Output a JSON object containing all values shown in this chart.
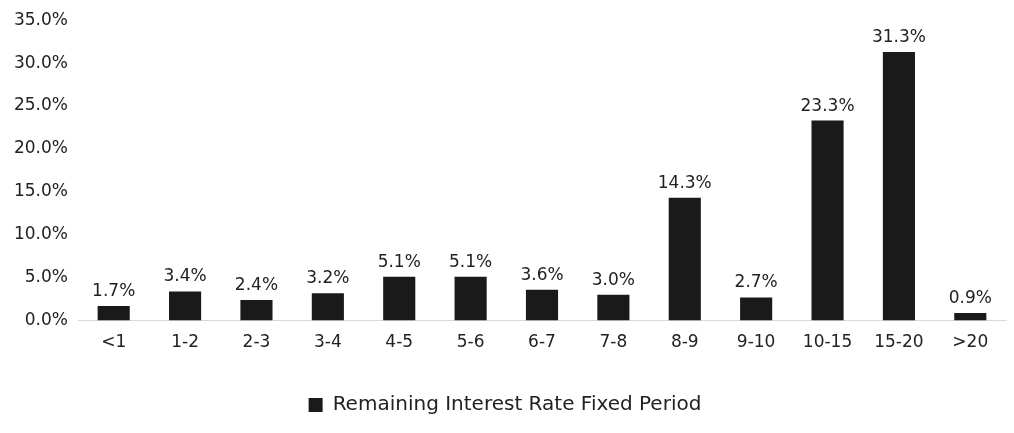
{
  "chart_data": {
    "type": "bar",
    "categories": [
      "<1",
      "1-2",
      "2-3",
      "3-4",
      "4-5",
      "5-6",
      "6-7",
      "7-8",
      "8-9",
      "9-10",
      "10-15",
      "15-20",
      ">20"
    ],
    "series": [
      {
        "name": "Remaining Interest Rate Fixed Period",
        "color": "#1a1a1a",
        "values": [
          1.7,
          3.4,
          2.4,
          3.2,
          5.1,
          5.1,
          3.6,
          3.0,
          14.3,
          2.7,
          23.3,
          31.3,
          0.9
        ],
        "value_labels": [
          "1.7%",
          "3.4%",
          "2.4%",
          "3.2%",
          "5.1%",
          "5.1%",
          "3.6%",
          "3.0%",
          "14.3%",
          "2.7%",
          "23.3%",
          "31.3%",
          "0.9%"
        ]
      }
    ],
    "ylim": [
      0,
      35
    ],
    "yticks": [
      {
        "value": 0,
        "label": "0.0%"
      },
      {
        "value": 5,
        "label": "5.0%"
      },
      {
        "value": 10,
        "label": "10.0%"
      },
      {
        "value": 15,
        "label": "15.0%"
      },
      {
        "value": 20,
        "label": "20.0%"
      },
      {
        "value": 25,
        "label": "25.0%"
      },
      {
        "value": 30,
        "label": "30.0%"
      },
      {
        "value": 35,
        "label": "35.0%"
      }
    ],
    "grid": false,
    "legend": "bottom"
  }
}
